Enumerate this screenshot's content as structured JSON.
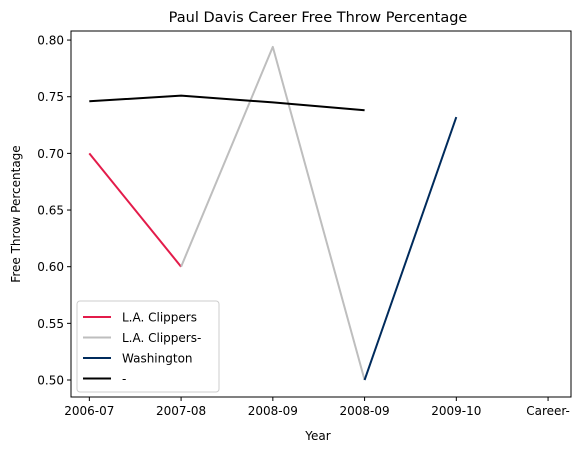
{
  "chart_data": {
    "type": "line",
    "title": "Paul Davis  Career Free Throw Percentage",
    "xlabel": "Year",
    "ylabel": "Free Throw Percentage",
    "categories": [
      "2006-07",
      "2007-08",
      "2008-09",
      "2008-09",
      "2009-10",
      "Career-"
    ],
    "x": [
      0,
      1,
      2,
      3,
      4,
      5
    ],
    "xlim": [
      -0.2,
      5.25
    ],
    "ylim": [
      0.485,
      0.808
    ],
    "yticks": [
      0.5,
      0.55,
      0.6,
      0.65,
      0.7,
      0.75,
      0.8
    ],
    "ytick_labels": [
      "0.50",
      "0.55",
      "0.60",
      "0.65",
      "0.70",
      "0.75",
      "0.80"
    ],
    "grid": false,
    "legend_position": "lower-left",
    "series": [
      {
        "name": "L.A. Clippers",
        "color": "#E31B4A",
        "points": [
          [
            0,
            0.7
          ],
          [
            1,
            0.6
          ]
        ]
      },
      {
        "name": "L.A. Clippers-",
        "color": "#BEBEBE",
        "points": [
          [
            1,
            0.6
          ],
          [
            2,
            0.794
          ],
          [
            3,
            0.5
          ]
        ]
      },
      {
        "name": "Washington",
        "color": "#002B5C",
        "points": [
          [
            3,
            0.5
          ],
          [
            4,
            0.732
          ]
        ]
      },
      {
        "name": "-",
        "color": "#000000",
        "points": [
          [
            0,
            0.746
          ],
          [
            1,
            0.751
          ],
          [
            2,
            0.745
          ],
          [
            3,
            0.738
          ]
        ]
      }
    ]
  }
}
